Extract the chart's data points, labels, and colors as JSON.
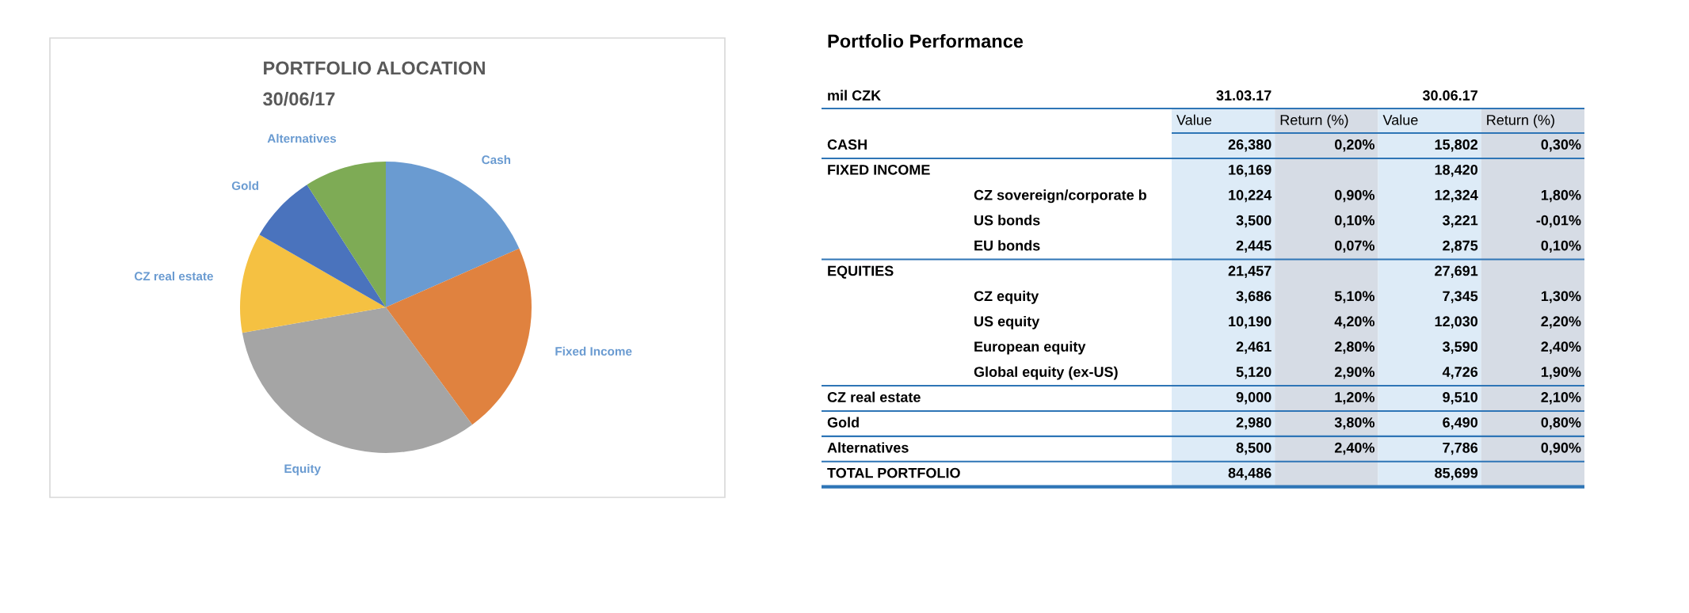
{
  "chart_data": [
    {
      "type": "pie",
      "title": "PORTFOLIO ALOCATION",
      "subtitle": "30/06/17",
      "categories": [
        "Cash",
        "Fixed Income",
        "Equity",
        "CZ real estate",
        "Gold",
        "Alternatives"
      ],
      "values": [
        18.4,
        21.5,
        32.3,
        11.1,
        7.6,
        9.1
      ],
      "colors": [
        "#6a9bd1",
        "#e0823f",
        "#a5a5a5",
        "#f5c142",
        "#4a73bd",
        "#7eab55"
      ]
    },
    {
      "type": "other",
      "title": "Portfolio Performance",
      "annotations": [
        "mil CZK",
        "31.03.17",
        "30.06.17"
      ],
      "categories": [
        "Value",
        "Return (%)",
        "Value",
        "Return (%)"
      ],
      "y_categories": [
        "CASH",
        "FIXED INCOME",
        null,
        null,
        null,
        "EQUITIES",
        null,
        null,
        null,
        null,
        "CZ real estate",
        "Gold",
        "Alternatives",
        "TOTAL PORTFOLIO"
      ],
      "y2_categories": [
        null,
        null,
        "CZ sovereign/corporate b",
        "US bonds",
        "EU bonds",
        null,
        "CZ equity",
        "US equity",
        "European equity",
        "Global equity (ex-US)",
        null,
        null,
        null,
        null
      ],
      "cell_labels": [
        [
          "26,380",
          "0,20%",
          "15,802",
          "0,30%"
        ],
        [
          "16,169",
          null,
          "18,420",
          null
        ],
        [
          "10,224",
          "0,90%",
          "12,324",
          "1,80%"
        ],
        [
          "3,500",
          "0,10%",
          "3,221",
          "-0,01%"
        ],
        [
          "2,445",
          "0,07%",
          "2,875",
          "0,10%"
        ],
        [
          "21,457",
          null,
          "27,691",
          null
        ],
        [
          "3,686",
          "5,10%",
          "7,345",
          "1,30%"
        ],
        [
          "10,190",
          "4,20%",
          "12,030",
          "2,20%"
        ],
        [
          "2,461",
          "2,80%",
          "3,590",
          "2,40%"
        ],
        [
          "5,120",
          "2,90%",
          "4,726",
          "1,90%"
        ],
        [
          "9,000",
          "1,20%",
          "9,510",
          "2,10%"
        ],
        [
          "2,980",
          "3,80%",
          "6,490",
          "0,80%"
        ],
        [
          "8,500",
          "2,40%",
          "7,786",
          "0,90%"
        ],
        [
          "84,486",
          null,
          "85,699",
          null
        ]
      ]
    }
  ]
}
